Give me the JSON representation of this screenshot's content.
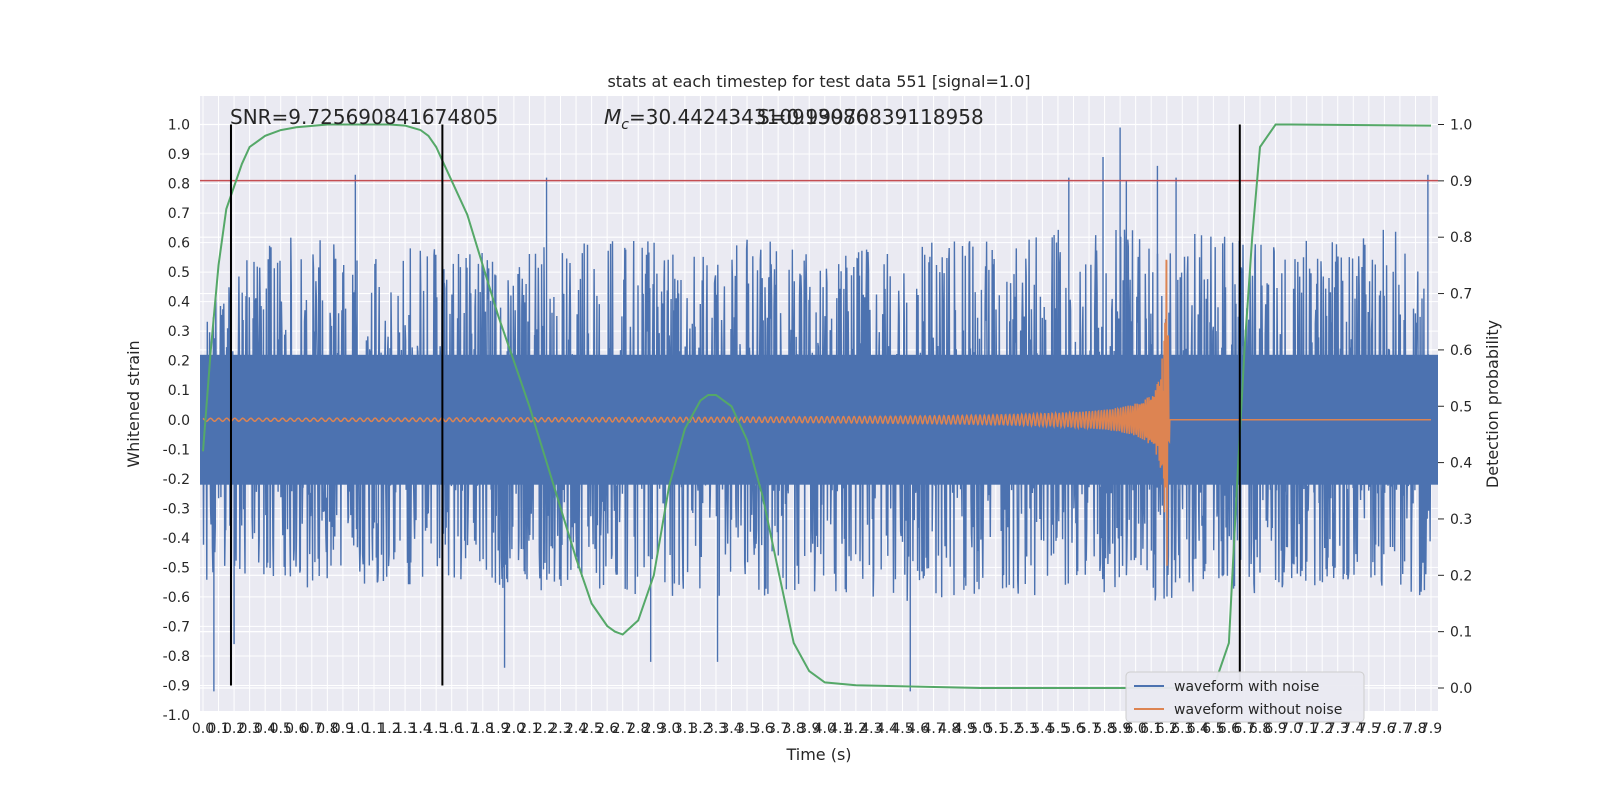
{
  "chart_data": {
    "type": "line",
    "title": "stats at each timestep for test data 551 [signal=1.0]",
    "xlabel": "Time (s)",
    "ylabel": "Whitened strain",
    "ylabel_right": "Detection probability",
    "xlim": [
      0.0,
      7.9
    ],
    "ylim": [
      -1.0,
      1.0
    ],
    "ylim_right": [
      0.0,
      1.0
    ],
    "x_ticks": [
      "0.0",
      "0.1",
      "0.2",
      "0.3",
      "0.4",
      "0.5",
      "0.6",
      "0.7",
      "0.8",
      "0.9",
      "1.0",
      "1.1",
      "1.2",
      "1.3",
      "1.4",
      "1.5",
      "1.6",
      "1.7",
      "1.8",
      "1.9",
      "2.0",
      "2.1",
      "2.2",
      "2.3",
      "2.4",
      "2.5",
      "2.6",
      "2.7",
      "2.8",
      "2.9",
      "3.0",
      "3.1",
      "3.2",
      "3.3",
      "3.4",
      "3.5",
      "3.6",
      "3.7",
      "3.8",
      "3.9",
      "4.0",
      "4.1",
      "4.2",
      "4.3",
      "4.4",
      "4.5",
      "4.6",
      "4.7",
      "4.8",
      "4.9",
      "5.0",
      "5.1",
      "5.2",
      "5.3",
      "5.4",
      "5.5",
      "5.6",
      "5.7",
      "5.8",
      "5.9",
      "6.0",
      "6.1",
      "6.2",
      "6.3",
      "6.4",
      "6.5",
      "6.6",
      "6.7",
      "6.8",
      "6.9",
      "7.0",
      "7.1",
      "7.2",
      "7.3",
      "7.4",
      "7.5",
      "7.6",
      "7.7",
      "7.8",
      "7.9"
    ],
    "y_ticks": [
      "1.0",
      "0.9",
      "0.8",
      "0.7",
      "0.6",
      "0.5",
      "0.4",
      "0.3",
      "0.2",
      "0.1",
      "0.0",
      "-0.1",
      "-0.2",
      "-0.3",
      "-0.4",
      "-0.5",
      "-0.6",
      "-0.7",
      "-0.8",
      "-0.9",
      "-1.0"
    ],
    "y_ticks_right": [
      "1.0",
      "0.9",
      "0.8",
      "0.7",
      "0.6",
      "0.5",
      "0.4",
      "0.3",
      "0.2",
      "0.1",
      "0.0"
    ],
    "annotations": {
      "snr": "SNR=9.725690841674805",
      "mc_symbol": "M",
      "mc_sub": "c",
      "mc_value": "=30.442434310913086",
      "overlap": "S=0.99970839118958"
    },
    "threshold_strain": 0.81,
    "vertical_markers": [
      0.18,
      1.54,
      6.67
    ],
    "grid": true,
    "legend_position": "lower-right",
    "series": [
      {
        "name": "waveform with noise",
        "color": "#4c72b0",
        "envelope_positive": [
          [
            0.0,
            0.45
          ],
          [
            0.5,
            0.62
          ],
          [
            1.0,
            0.6
          ],
          [
            1.5,
            0.58
          ],
          [
            2.0,
            0.58
          ],
          [
            2.5,
            0.6
          ],
          [
            3.0,
            0.62
          ],
          [
            3.5,
            0.62
          ],
          [
            4.0,
            0.6
          ],
          [
            4.5,
            0.6
          ],
          [
            5.0,
            0.62
          ],
          [
            5.5,
            0.66
          ],
          [
            6.0,
            0.66
          ],
          [
            6.5,
            0.64
          ],
          [
            7.0,
            0.6
          ],
          [
            7.5,
            0.64
          ],
          [
            7.9,
            0.66
          ]
        ],
        "envelope_negative": [
          [
            0.0,
            -0.55
          ],
          [
            0.5,
            -0.58
          ],
          [
            1.0,
            -0.56
          ],
          [
            1.5,
            -0.56
          ],
          [
            2.0,
            -0.58
          ],
          [
            2.5,
            -0.58
          ],
          [
            3.0,
            -0.6
          ],
          [
            3.5,
            -0.6
          ],
          [
            4.0,
            -0.58
          ],
          [
            4.5,
            -0.62
          ],
          [
            5.0,
            -0.6
          ],
          [
            5.5,
            -0.6
          ],
          [
            6.0,
            -0.62
          ],
          [
            6.5,
            -0.6
          ],
          [
            7.0,
            -0.58
          ],
          [
            7.5,
            -0.6
          ],
          [
            7.9,
            -0.6
          ]
        ],
        "spikes": [
          [
            0.07,
            -0.92
          ],
          [
            0.2,
            -0.76
          ],
          [
            0.98,
            0.83
          ],
          [
            2.21,
            0.82
          ],
          [
            4.55,
            -0.92
          ],
          [
            5.57,
            0.82
          ],
          [
            5.79,
            0.89
          ],
          [
            5.9,
            0.99
          ],
          [
            5.94,
            0.81
          ],
          [
            6.14,
            0.86
          ],
          [
            6.26,
            0.82
          ],
          [
            7.88,
            0.83
          ],
          [
            1.55,
            0.51
          ],
          [
            2.88,
            -0.82
          ],
          [
            3.31,
            -0.82
          ],
          [
            1.94,
            -0.84
          ]
        ]
      },
      {
        "name": "waveform without noise",
        "color": "#dd8452",
        "start_amplitude": 0.003,
        "merger_time": 6.2,
        "peak_amplitude": 0.54,
        "ringdown_end": 6.22
      },
      {
        "name": "detection probability",
        "color": "#55a868",
        "axis": "right",
        "x": [
          0.0,
          0.05,
          0.1,
          0.15,
          0.2,
          0.25,
          0.3,
          0.4,
          0.5,
          0.6,
          0.8,
          1.0,
          1.2,
          1.3,
          1.4,
          1.45,
          1.5,
          1.55,
          1.6,
          1.7,
          1.8,
          1.9,
          2.0,
          2.1,
          2.2,
          2.3,
          2.4,
          2.5,
          2.6,
          2.65,
          2.7,
          2.8,
          2.9,
          3.0,
          3.1,
          3.2,
          3.25,
          3.3,
          3.4,
          3.5,
          3.6,
          3.7,
          3.8,
          3.9,
          4.0,
          4.2,
          5.0,
          6.0,
          6.5,
          6.6,
          6.65,
          6.7,
          6.75,
          6.8,
          6.9,
          7.0,
          7.9
        ],
        "y": [
          0.42,
          0.6,
          0.75,
          0.85,
          0.89,
          0.93,
          0.96,
          0.98,
          0.99,
          0.995,
          1.0,
          1.0,
          1.0,
          0.998,
          0.99,
          0.98,
          0.96,
          0.93,
          0.9,
          0.84,
          0.75,
          0.66,
          0.58,
          0.5,
          0.41,
          0.32,
          0.23,
          0.15,
          0.11,
          0.1,
          0.095,
          0.12,
          0.2,
          0.36,
          0.46,
          0.51,
          0.52,
          0.52,
          0.5,
          0.44,
          0.34,
          0.21,
          0.08,
          0.03,
          0.01,
          0.005,
          0.0,
          0.0,
          0.0,
          0.08,
          0.35,
          0.6,
          0.8,
          0.96,
          1.0,
          1.0,
          0.998
        ]
      }
    ]
  }
}
